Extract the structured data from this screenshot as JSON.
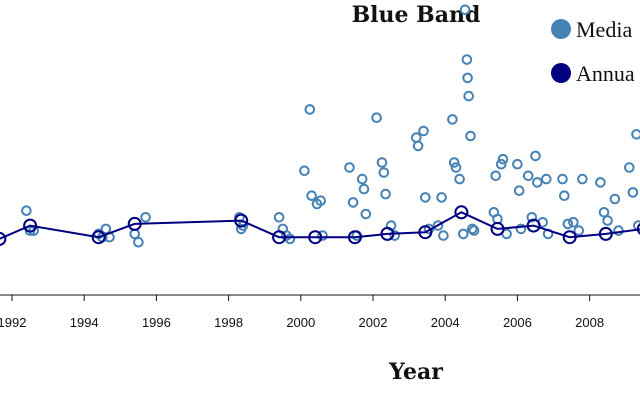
{
  "chart_data": {
    "type": "scatter",
    "title": "Blue Band",
    "xlabel": "Year",
    "ylabel": "",
    "xlim": [
      1991.65,
      2009.5
    ],
    "ylim": [
      0,
      200
    ],
    "x_ticks": [
      "1992",
      "1994",
      "1996",
      "1998",
      "2000",
      "2002",
      "2004",
      "2006",
      "2008"
    ],
    "legend": {
      "position": "top-right",
      "entries": [
        "Media",
        "Annua"
      ]
    },
    "colors": {
      "median": "#4682b4",
      "annual": "#000080"
    },
    "series": [
      {
        "name": "Media",
        "style": "open-circles",
        "points": [
          [
            1992.4,
            49
          ],
          [
            1992.5,
            37
          ],
          [
            1992.6,
            37
          ],
          [
            1994.4,
            35
          ],
          [
            1994.5,
            33
          ],
          [
            1994.6,
            38
          ],
          [
            1994.7,
            33
          ],
          [
            1995.4,
            35
          ],
          [
            1995.5,
            30
          ],
          [
            1995.7,
            45
          ],
          [
            1998.3,
            45
          ],
          [
            1998.35,
            38
          ],
          [
            1998.4,
            40
          ],
          [
            1999.4,
            45
          ],
          [
            1999.5,
            38
          ],
          [
            1999.6,
            34
          ],
          [
            1999.7,
            32
          ],
          [
            2000.1,
            73
          ],
          [
            2000.25,
            110
          ],
          [
            2000.3,
            58
          ],
          [
            2000.45,
            53
          ],
          [
            2000.55,
            55
          ],
          [
            2000.6,
            34
          ],
          [
            2001.35,
            75
          ],
          [
            2001.45,
            54
          ],
          [
            2001.55,
            34
          ],
          [
            2001.7,
            68
          ],
          [
            2001.75,
            62
          ],
          [
            2001.8,
            47
          ],
          [
            2002.1,
            105
          ],
          [
            2002.25,
            78
          ],
          [
            2002.3,
            72
          ],
          [
            2002.35,
            59
          ],
          [
            2002.5,
            40
          ],
          [
            2002.6,
            34
          ],
          [
            2003.2,
            93
          ],
          [
            2003.25,
            88
          ],
          [
            2003.4,
            97
          ],
          [
            2003.45,
            57
          ],
          [
            2003.55,
            38
          ],
          [
            2003.8,
            40
          ],
          [
            2003.9,
            57
          ],
          [
            2003.95,
            34
          ],
          [
            2004.2,
            104
          ],
          [
            2004.25,
            78
          ],
          [
            2004.3,
            75
          ],
          [
            2004.4,
            68
          ],
          [
            2004.5,
            35
          ],
          [
            2004.55,
            170
          ],
          [
            2004.6,
            140
          ],
          [
            2004.62,
            129
          ],
          [
            2004.65,
            118
          ],
          [
            2004.7,
            94
          ],
          [
            2004.75,
            38
          ],
          [
            2004.8,
            37
          ],
          [
            2005.35,
            48
          ],
          [
            2005.4,
            70
          ],
          [
            2005.45,
            44
          ],
          [
            2005.55,
            77
          ],
          [
            2005.6,
            80
          ],
          [
            2005.7,
            35
          ],
          [
            2006.0,
            77
          ],
          [
            2006.05,
            61
          ],
          [
            2006.1,
            38
          ],
          [
            2006.3,
            70
          ],
          [
            2006.4,
            45
          ],
          [
            2006.5,
            82
          ],
          [
            2006.55,
            66
          ],
          [
            2006.7,
            42
          ],
          [
            2006.8,
            68
          ],
          [
            2006.85,
            35
          ],
          [
            2007.25,
            68
          ],
          [
            2007.3,
            58
          ],
          [
            2007.4,
            41
          ],
          [
            2007.55,
            42
          ],
          [
            2007.7,
            37
          ],
          [
            2007.8,
            68
          ],
          [
            2008.3,
            66
          ],
          [
            2008.4,
            48
          ],
          [
            2008.5,
            43
          ],
          [
            2008.7,
            56
          ],
          [
            2008.8,
            37
          ],
          [
            2009.1,
            75
          ],
          [
            2009.2,
            60
          ],
          [
            2009.3,
            95
          ],
          [
            2009.35,
            40
          ]
        ]
      },
      {
        "name": "Annua",
        "style": "line-with-markers",
        "points": [
          [
            1991.65,
            32
          ],
          [
            1992.5,
            40
          ],
          [
            1994.4,
            33
          ],
          [
            1995.4,
            41
          ],
          [
            1998.35,
            43
          ],
          [
            1999.4,
            33
          ],
          [
            2000.4,
            33
          ],
          [
            2001.5,
            33
          ],
          [
            2002.4,
            35
          ],
          [
            2003.45,
            36
          ],
          [
            2004.45,
            48
          ],
          [
            2005.45,
            38
          ],
          [
            2006.45,
            40
          ],
          [
            2007.45,
            33
          ],
          [
            2008.45,
            35
          ],
          [
            2009.5,
            38
          ]
        ]
      }
    ]
  }
}
